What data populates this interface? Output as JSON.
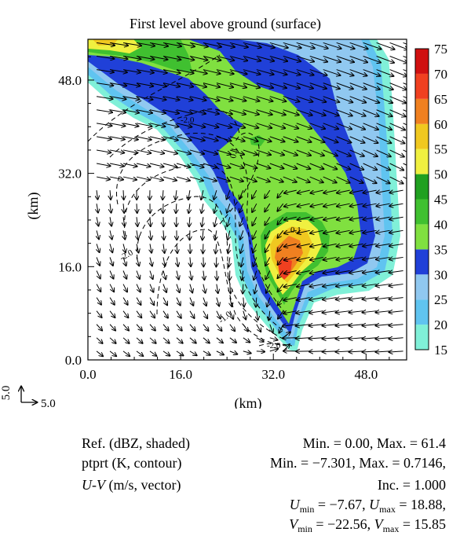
{
  "chart_data": {
    "type": "heatmap",
    "title": "First level above ground (surface)",
    "xlabel": "(km)",
    "ylabel": "(km)",
    "xlim": [
      0,
      55
    ],
    "ylim": [
      0,
      55
    ],
    "xticks": [
      "0.0",
      "16.0",
      "32.0",
      "48.0"
    ],
    "xtick_values": [
      0,
      16,
      32,
      48
    ],
    "yticks": [
      "0.0",
      "16.0",
      "32.0",
      "48.0"
    ],
    "ytick_values": [
      0,
      16,
      32,
      48
    ],
    "colorbar": {
      "levels": [
        15,
        20,
        25,
        30,
        35,
        40,
        45,
        50,
        55,
        60,
        65,
        70,
        75
      ],
      "colors": [
        "#80f0d8",
        "#60c4f0",
        "#90c8f0",
        "#2040d8",
        "#80e040",
        "#40c030",
        "#20a020",
        "#f0f040",
        "#f0c820",
        "#f08020",
        "#f04020",
        "#d01010",
        "#901010"
      ]
    },
    "contour_labels": [
      "-2.0",
      "0.1",
      "-2.0",
      "-1.0",
      "-2.0",
      "0.1"
    ],
    "vector_reference": {
      "x_label": "5.0",
      "y_label": "5.0"
    }
  },
  "captions": {
    "ref_label": "Ref. (dBZ, shaded)",
    "ref_stats": "Min. = 0.00, Max. = 61.4",
    "ptprt_label": "ptprt (K, contour)",
    "ptprt_stats": "Min. = −7.301, Max. = 0.7146,",
    "inc": "Inc. = 1.000",
    "uv_label_a": "U",
    "uv_label_b": "-",
    "uv_label_c": "V",
    "uv_label_d": " (m/s, vector)",
    "u_sym": "U",
    "u_min_sub": "min",
    "u_min_val": " = −7.67, ",
    "u_max_sub": "max",
    "u_max_val": " = 18.88,",
    "v_sym": "V",
    "v_min_sub": "min",
    "v_min_val": " = −22.56, ",
    "v_max_sub": "max",
    "v_max_val": " = 15.85"
  }
}
